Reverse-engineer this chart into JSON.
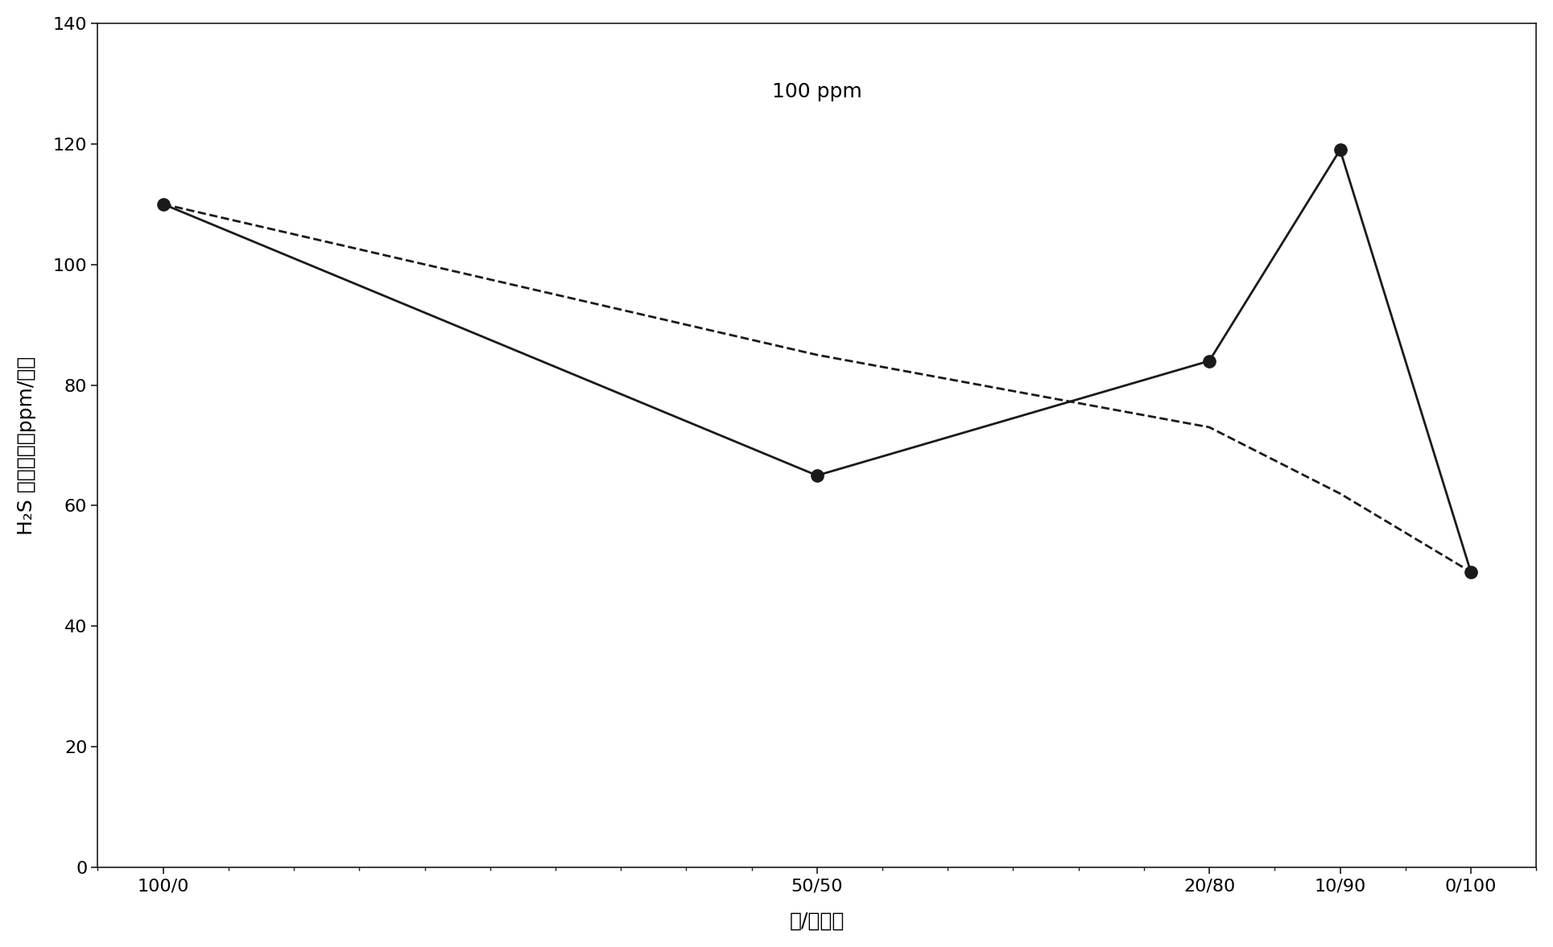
{
  "x_labels": [
    "100/0",
    "50/50",
    "20/80",
    "10/90",
    "0/100"
  ],
  "x_positions": [
    100,
    50,
    20,
    10,
    0
  ],
  "solid_y": [
    110,
    65,
    84,
    119,
    49
  ],
  "dashed_y": [
    110,
    85,
    73,
    62,
    49
  ],
  "ylabel": "H₂S 清除速率，ppm/分钟",
  "xlabel": "笔/乙二醉",
  "title": "100 ppm",
  "ylim": [
    0,
    140
  ],
  "yticks": [
    0,
    20,
    40,
    60,
    80,
    100,
    120,
    140
  ],
  "xlim": [
    -5,
    105
  ],
  "bg_color": "#ffffff",
  "line_color": "#1a1a1a",
  "marker_color": "#1a1a1a",
  "marker_size": 11,
  "linewidth": 2.0,
  "tick_label_fontsize": 16,
  "axis_label_fontsize": 18,
  "title_fontsize": 18
}
